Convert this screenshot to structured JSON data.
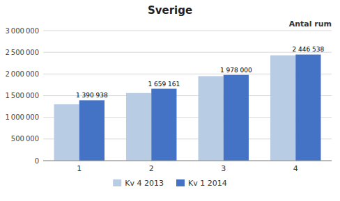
{
  "chart_data": {
    "type": "bar",
    "title": "Sverige",
    "subtitle": "Antal rum",
    "categories": [
      "1",
      "2",
      "3",
      "4"
    ],
    "series": [
      {
        "name": "Kv 4 2013",
        "color": "#b8cce4",
        "values": [
          1300000,
          1560000,
          1950000,
          2430000
        ]
      },
      {
        "name": "Kv 1 2014",
        "color": "#4472c4",
        "values": [
          1390938,
          1659161,
          1978000,
          2446538
        ],
        "data_labels": true,
        "value_labels": [
          "1 390 938",
          "1 659 161",
          "1 978 000",
          "2 446 538"
        ]
      }
    ],
    "ylim": [
      0,
      3000000
    ],
    "yticks": [
      0,
      {
        "value": 500000,
        "label": "500 000"
      },
      {
        "value": 1000000,
        "label": "1 000 000"
      },
      {
        "value": 1500000,
        "label": "1 500 000"
      },
      {
        "value": 2000000,
        "label": "2 000 000"
      },
      {
        "value": 2500000,
        "label": "2 500 000"
      },
      {
        "value": 3000000,
        "label": "3 000 000"
      }
    ],
    "grid": true,
    "legend": "bottom"
  }
}
